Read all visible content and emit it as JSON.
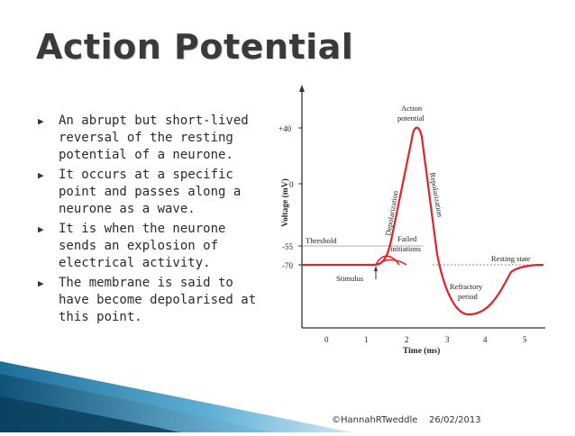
{
  "slide": {
    "title": "Action Potential",
    "bullets": [
      {
        "marker": "▶",
        "text": "An abrupt but short-lived reversal of the resting potential of a neurone."
      },
      {
        "marker": "▶",
        "text": "It occurs at a specific point and passes along a neurone as a wave."
      },
      {
        "marker": "▶",
        "text": "It is when the neurone sends an explosion of electrical activity."
      },
      {
        "marker": "▶",
        "text": "The membrane is said to have become depolarised at this point."
      }
    ],
    "footer": {
      "author": "©HannahRTweddle",
      "date": "26/02/2013"
    }
  },
  "diagram": {
    "y_axis_label": "Voltage (mV)",
    "x_axis_label": "Time (ms)",
    "y_ticks": [
      "+40",
      "0",
      "-55",
      "-70"
    ],
    "x_ticks": [
      "0",
      "1",
      "2",
      "3",
      "4",
      "5"
    ],
    "labels": {
      "action_potential_1": "Action",
      "action_potential_2": "potential",
      "depolarization": "Depolarization",
      "repolarization": "Repolarization",
      "threshold": "Threshold",
      "failed_1": "Failed",
      "failed_2": "initiations",
      "resting_state": "Resting state",
      "stimulus": "Stimulus",
      "refractory_1": "Refractory",
      "refractory_2": "period"
    },
    "colors": {
      "curve": "#e8202a",
      "axis": "#333333",
      "threshold_line": "#999999"
    }
  }
}
